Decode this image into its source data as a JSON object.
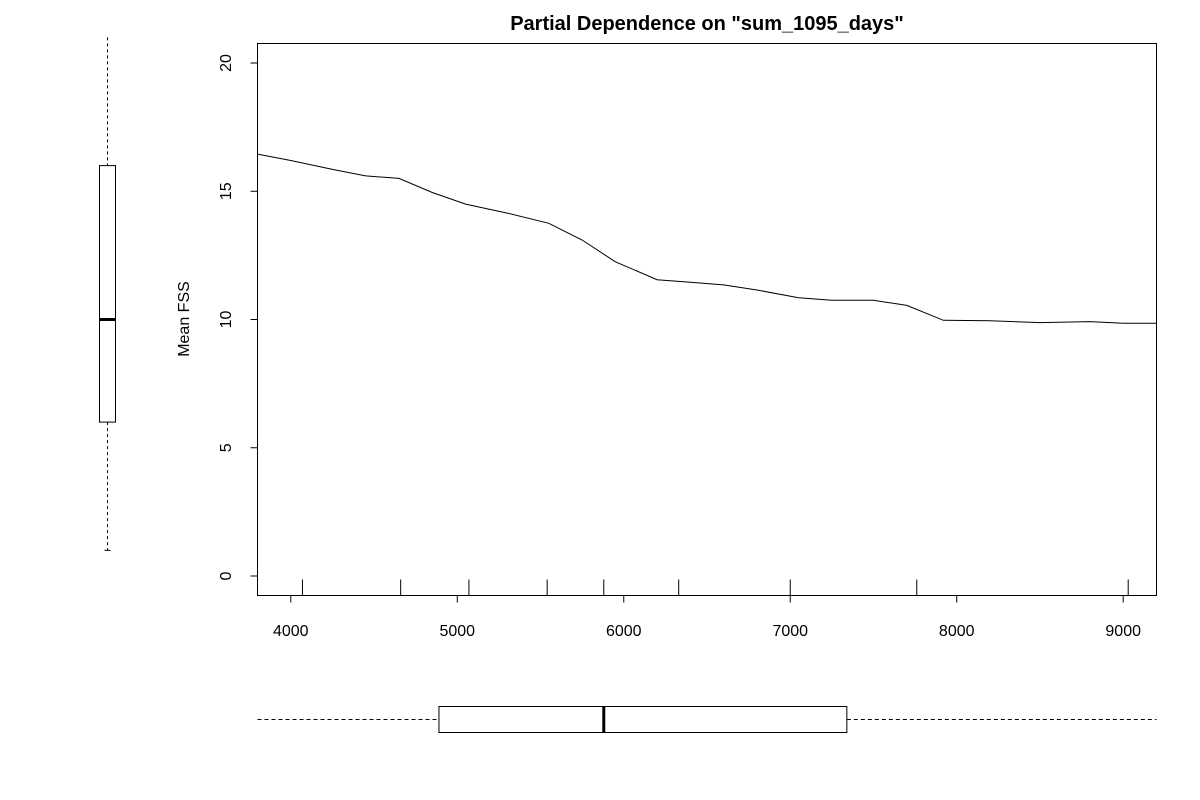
{
  "chart_data": {
    "type": "line",
    "title": "Partial Dependence on \"sum_1095_days\"",
    "xlabel": "",
    "ylabel": "Mean FSS",
    "xlim": [
      3800,
      9200
    ],
    "ylim": [
      0,
      20
    ],
    "x_ticks": [
      4000,
      5000,
      6000,
      7000,
      8000,
      9000
    ],
    "y_ticks": [
      0,
      5,
      10,
      15,
      20
    ],
    "grid": false,
    "series": [
      {
        "x": [
          3800,
          4000,
          4250,
          4450,
          4650,
          4850,
          5050,
          5300,
          5550,
          5750,
          5950,
          6200,
          6400,
          6600,
          6800,
          7050,
          7250,
          7500,
          7700,
          7920,
          8200,
          8500,
          8800,
          9000,
          9200
        ],
        "y": [
          16.45,
          16.2,
          15.85,
          15.6,
          15.5,
          14.95,
          14.5,
          14.15,
          13.75,
          13.1,
          12.25,
          11.55,
          11.45,
          11.35,
          11.15,
          10.85,
          10.75,
          10.75,
          10.55,
          9.97,
          9.95,
          9.88,
          9.92,
          9.85,
          9.85
        ]
      }
    ],
    "rug_x": [
      4070,
      4660,
      5070,
      5540,
      5880,
      6330,
      7000,
      7760,
      9030
    ],
    "x_boxplot": {
      "whisker_low": 3800,
      "q1": 4890,
      "median": 5880,
      "q3": 7340,
      "whisker_high": 9200
    },
    "y_boxplot": {
      "whisker_low": 1,
      "q1": 6,
      "median": 10,
      "q3": 16,
      "whisker_high": 21
    }
  }
}
